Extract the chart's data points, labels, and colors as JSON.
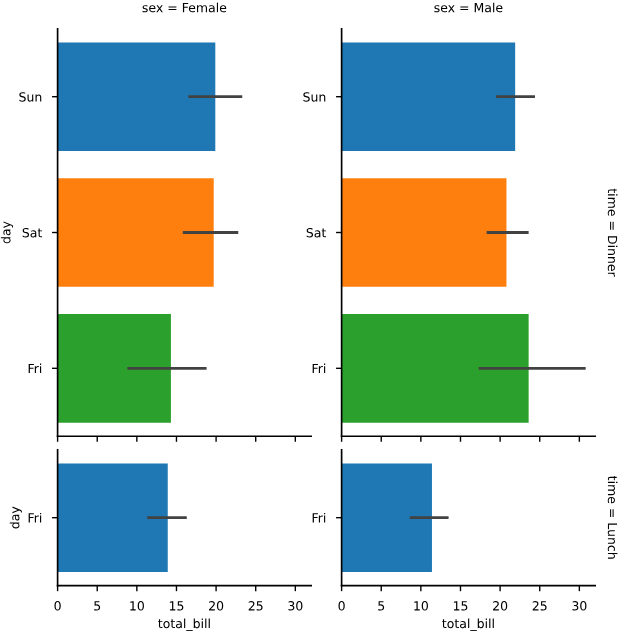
{
  "chart_data": [
    {
      "type": "bar",
      "orientation": "horizontal",
      "title": "sex = Female",
      "ylabel": "day",
      "categories": [
        "Sun",
        "Sat",
        "Fri"
      ],
      "values": [
        19.9,
        19.7,
        14.3
      ],
      "errors": [
        [
          16.5,
          23.3
        ],
        [
          15.8,
          22.8
        ],
        [
          8.8,
          18.8
        ]
      ],
      "colors": [
        "#1f77b4",
        "#ff7f0e",
        "#2ca02c"
      ],
      "xlim": [
        0,
        32
      ],
      "xticks": [
        0,
        5,
        10,
        15,
        20,
        25,
        30
      ],
      "tick_labels": "y",
      "grid": false,
      "legend": false
    },
    {
      "type": "bar",
      "orientation": "horizontal",
      "title": "sex = Male",
      "annotations": [
        "time = Dinner"
      ],
      "categories": [
        "Sun",
        "Sat",
        "Fri"
      ],
      "values": [
        21.9,
        20.8,
        23.6
      ],
      "errors": [
        [
          19.5,
          24.4
        ],
        [
          18.3,
          23.6
        ],
        [
          17.3,
          30.8
        ]
      ],
      "colors": [
        "#1f77b4",
        "#ff7f0e",
        "#2ca02c"
      ],
      "xlim": [
        0,
        32
      ],
      "xticks": [
        0,
        5,
        10,
        15,
        20,
        25,
        30
      ],
      "tick_labels": "y",
      "grid": false,
      "legend": false
    },
    {
      "type": "bar",
      "orientation": "horizontal",
      "ylabel": "day",
      "xlabel": "total_bill",
      "categories": [
        "Fri"
      ],
      "values": [
        13.9
      ],
      "errors": [
        [
          11.3,
          16.3
        ]
      ],
      "colors": [
        "#1f77b4"
      ],
      "xlim": [
        0,
        32
      ],
      "xticks": [
        0,
        5,
        10,
        15,
        20,
        25,
        30
      ],
      "grid": false,
      "legend": false
    },
    {
      "type": "bar",
      "orientation": "horizontal",
      "xlabel": "total_bill",
      "annotations": [
        "time = Lunch"
      ],
      "categories": [
        "Fri"
      ],
      "values": [
        11.4
      ],
      "errors": [
        [
          8.6,
          13.5
        ]
      ],
      "colors": [
        "#1f77b4"
      ],
      "xlim": [
        0,
        32
      ],
      "xticks": [
        0,
        5,
        10,
        15,
        20,
        25,
        30
      ],
      "grid": false,
      "legend": false
    }
  ]
}
